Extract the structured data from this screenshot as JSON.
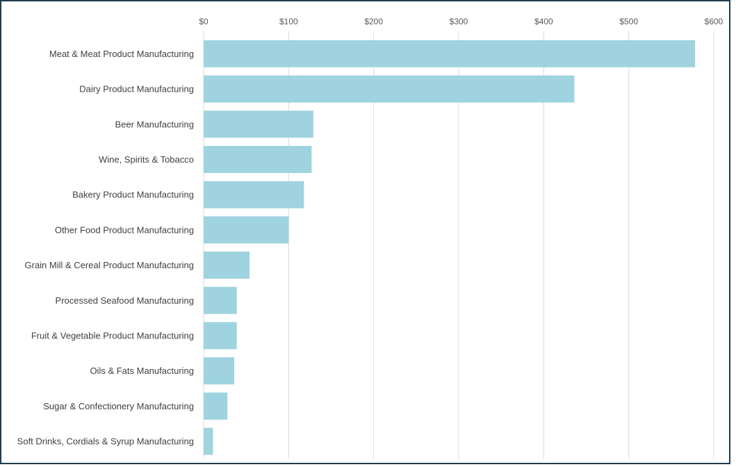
{
  "chart_data": {
    "type": "bar",
    "orientation": "horizontal",
    "title": "",
    "xlabel": "",
    "ylabel": "",
    "categories": [
      "Meat & Meat Product Manufacturing",
      "Dairy Product Manufacturing",
      "Beer Manufacturing",
      "Wine, Spirits & Tobacco",
      "Bakery Product Manufacturing",
      "Other Food Product Manufacturing",
      "Grain Mill & Cereal Product Manufacturing",
      "Processed Seafood Manufacturing",
      "Fruit & Vegetable Product Manufacturing",
      "Oils & Fats Manufacturing",
      "Sugar & Confectionery Manufacturing",
      "Soft Drinks, Cordials & Syrup Manufacturing"
    ],
    "values": [
      578,
      436,
      129,
      127,
      118,
      100,
      54,
      39,
      39,
      36,
      28,
      11
    ],
    "xlim": [
      0,
      600
    ],
    "x_ticks": [
      0,
      100,
      200,
      300,
      400,
      500,
      600
    ],
    "x_tick_labels": [
      "$0",
      "$100",
      "$200",
      "$300",
      "$400",
      "$500",
      "$600"
    ],
    "x_axis_position": "top",
    "grid": true,
    "legend": "none",
    "colors": {
      "bar": "#9ed3df",
      "grid": "#d9d9d9",
      "frame": "#1f3b4d"
    }
  }
}
